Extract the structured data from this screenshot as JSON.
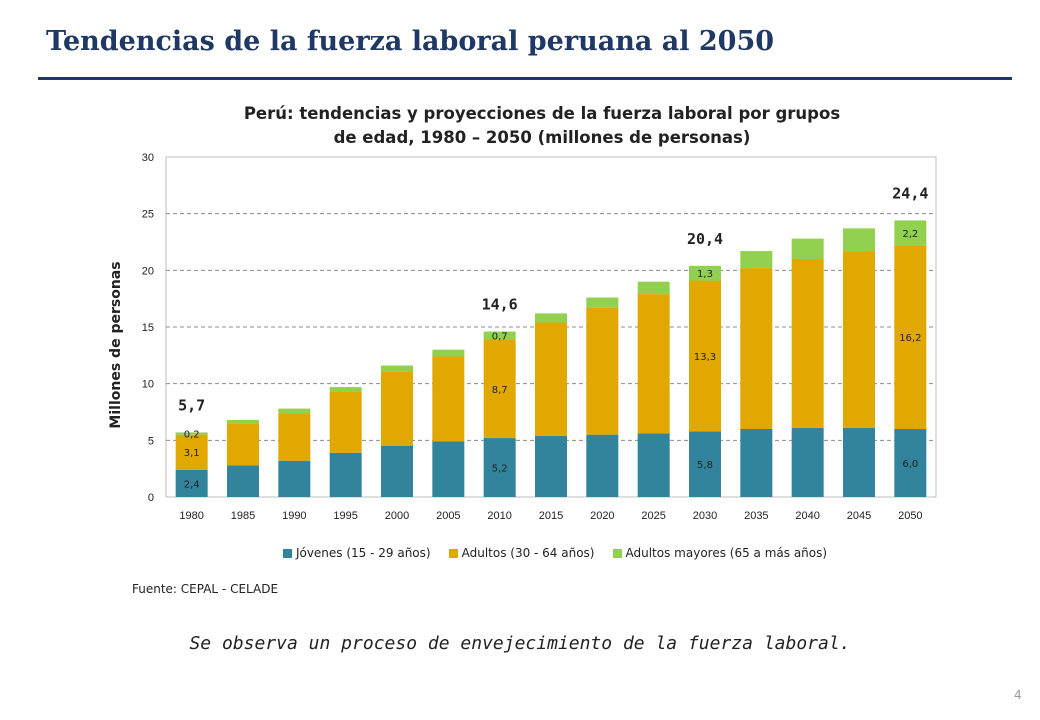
{
  "header": {
    "title": "Tendencias de la fuerza laboral peruana al 2050"
  },
  "chart_data": {
    "type": "bar",
    "stacked": true,
    "title": "Perú: tendencias y proyecciones de la fuerza laboral por grupos de edad, 1980 – 2050 (millones de personas)",
    "title_lines": [
      "Perú: tendencias y proyecciones de la fuerza laboral por grupos",
      "de edad, 1980 – 2050 (millones de personas)"
    ],
    "xlabel": "",
    "ylabel": "Millones de personas",
    "ylim": [
      0,
      30
    ],
    "yticks": [
      0,
      5,
      10,
      15,
      20,
      25,
      30
    ],
    "grid": "horizontal dashed",
    "legend_position": "bottom",
    "categories": [
      "1980",
      "1985",
      "1990",
      "1995",
      "2000",
      "2005",
      "2010",
      "2015",
      "2020",
      "2025",
      "2030",
      "2035",
      "2040",
      "2045",
      "2050"
    ],
    "series": [
      {
        "name": "Jóvenes (15 - 29 años)",
        "color": "#31849b",
        "values": [
          2.4,
          2.8,
          3.2,
          3.9,
          4.5,
          4.9,
          5.2,
          5.4,
          5.5,
          5.6,
          5.8,
          6.0,
          6.1,
          6.1,
          6.0
        ]
      },
      {
        "name": "Adultos (30 - 64 años)",
        "color": "#e0a800",
        "values": [
          3.1,
          3.7,
          4.2,
          5.4,
          6.6,
          7.5,
          8.7,
          10.0,
          11.2,
          12.3,
          13.3,
          14.2,
          14.9,
          15.6,
          16.2
        ]
      },
      {
        "name": "Adultos mayores (65 a más años)",
        "color": "#92d050",
        "values": [
          0.2,
          0.3,
          0.4,
          0.4,
          0.5,
          0.6,
          0.7,
          0.8,
          0.9,
          1.1,
          1.3,
          1.5,
          1.8,
          2.0,
          2.2
        ]
      }
    ],
    "segment_labels": [
      {
        "category": "1980",
        "series": 0,
        "text": "2,4"
      },
      {
        "category": "1980",
        "series": 1,
        "text": "3,1"
      },
      {
        "category": "1980",
        "series": 2,
        "text": "0,2"
      },
      {
        "category": "2010",
        "series": 0,
        "text": "5,2"
      },
      {
        "category": "2010",
        "series": 1,
        "text": "8,7"
      },
      {
        "category": "2010",
        "series": 2,
        "text": "0,7"
      },
      {
        "category": "2030",
        "series": 0,
        "text": "5,8"
      },
      {
        "category": "2030",
        "series": 1,
        "text": "13,3"
      },
      {
        "category": "2030",
        "series": 2,
        "text": "1,3"
      },
      {
        "category": "2050",
        "series": 0,
        "text": "6,0"
      },
      {
        "category": "2050",
        "series": 1,
        "text": "16,2"
      },
      {
        "category": "2050",
        "series": 2,
        "text": "2,2"
      }
    ],
    "total_labels": [
      {
        "category": "1980",
        "text": "5,7"
      },
      {
        "category": "2010",
        "text": "14,6"
      },
      {
        "category": "2030",
        "text": "20,4"
      },
      {
        "category": "2050",
        "text": "24,4"
      }
    ]
  },
  "footer": {
    "source": "Fuente: CEPAL - CELADE",
    "conclusion": "Se observa un proceso de envejecimiento de la fuerza laboral.",
    "page_number": "4"
  }
}
